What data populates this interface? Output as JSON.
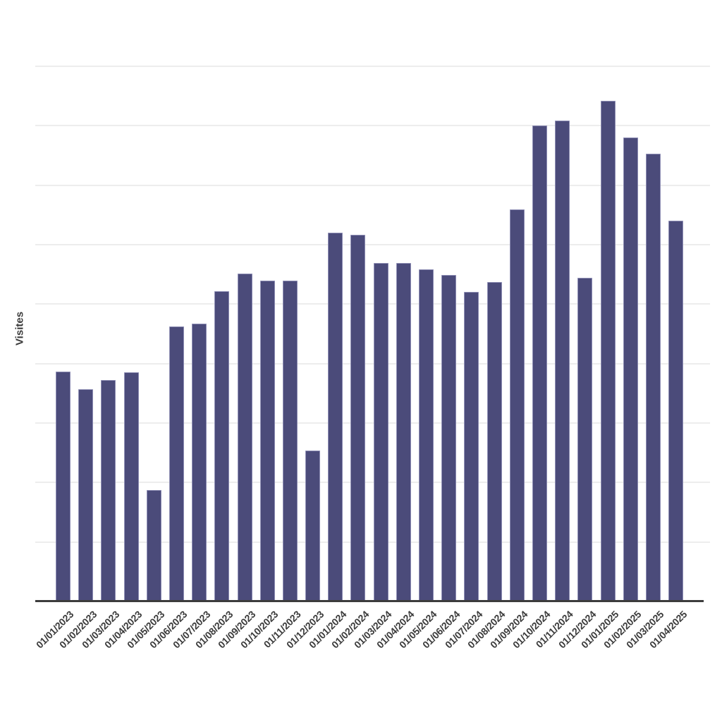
{
  "chart": {
    "bar_color": "#4b4b7a",
    "bar_edge_color": "#8f8fb5",
    "grid_color": "#ededed",
    "axis_color": "#3c3c3c",
    "label_color": "#3b3b3b"
  },
  "chart_data": {
    "type": "bar",
    "title": "",
    "xlabel": "",
    "ylabel": "Visites",
    "categories": [
      "01/01/2023",
      "01/02/2023",
      "01/03/2023",
      "01/04/2023",
      "01/05/2023",
      "01/06/2023",
      "01/07/2023",
      "01/08/2023",
      "01/09/2023",
      "01/10/2023",
      "01/11/2023",
      "01/12/2023",
      "01/01/2024",
      "01/02/2024",
      "01/03/2024",
      "01/04/2024",
      "01/05/2024",
      "01/06/2024",
      "01/07/2024",
      "01/08/2024",
      "01/09/2024",
      "01/10/2024",
      "01/11/2024",
      "01/12/2024",
      "01/01/2025",
      "01/02/2025",
      "01/03/2025",
      "01/04/2025"
    ],
    "values": [
      387,
      357,
      372,
      385,
      187,
      463,
      467,
      522,
      551,
      540,
      540,
      254,
      620,
      617,
      569,
      569,
      558,
      549,
      521,
      537,
      659,
      800,
      809,
      544,
      842,
      780,
      753,
      640
    ],
    "ylim": [
      0,
      900
    ],
    "gridline_interval": 100,
    "grid": true,
    "legend_position": "none",
    "y_tick_labels_visible": false,
    "x_tick_rotation": -45
  }
}
